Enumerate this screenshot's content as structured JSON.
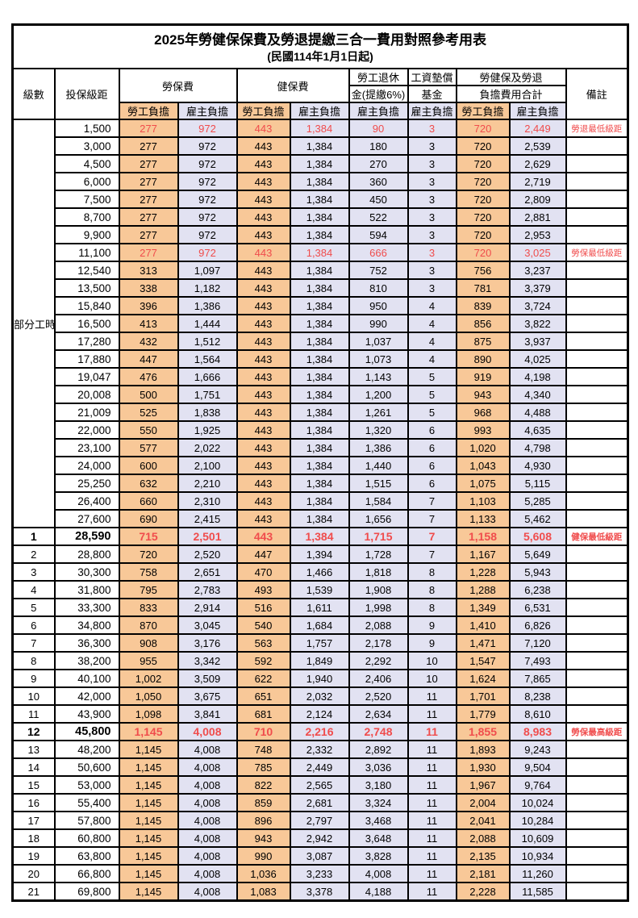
{
  "title": "2025年勞健保保費及勞退提繳三合一費用對照參考用表",
  "subtitle": "(民國114年1月1日起)",
  "colors": {
    "employee_column_bg": "#F8C898",
    "employer_column_bg": "#E2E2F2",
    "highlight_text": "#F04C4C",
    "grid_border": "#000000"
  },
  "header": {
    "level": "級數",
    "salary": "投保級距",
    "labor": "勞保費",
    "health": "健保費",
    "pension_line1": "勞工退休",
    "pension_line2": "金(提繳6%)",
    "fund_line1": "工資墊償",
    "fund_line2": "基金",
    "total_line1": "勞健保及勞退",
    "total_line2": "負擔費用合計",
    "note": "備註",
    "employee": "勞工負擔",
    "employer": "雇主負擔"
  },
  "table": {
    "part_time_label": "部分工時",
    "part_time_rowspan": 23,
    "rows": [
      {
        "salary": "1,500",
        "labor_emp": "277",
        "labor_er": "972",
        "health_emp": "443",
        "health_er": "1,384",
        "pension_er": "90",
        "fund_er": "3",
        "total_emp": "720",
        "total_er": "2,449",
        "note": "勞退最低級距",
        "highlight": true
      },
      {
        "salary": "3,000",
        "labor_emp": "277",
        "labor_er": "972",
        "health_emp": "443",
        "health_er": "1,384",
        "pension_er": "180",
        "fund_er": "3",
        "total_emp": "720",
        "total_er": "2,539"
      },
      {
        "salary": "4,500",
        "labor_emp": "277",
        "labor_er": "972",
        "health_emp": "443",
        "health_er": "1,384",
        "pension_er": "270",
        "fund_er": "3",
        "total_emp": "720",
        "total_er": "2,629"
      },
      {
        "salary": "6,000",
        "labor_emp": "277",
        "labor_er": "972",
        "health_emp": "443",
        "health_er": "1,384",
        "pension_er": "360",
        "fund_er": "3",
        "total_emp": "720",
        "total_er": "2,719"
      },
      {
        "salary": "7,500",
        "labor_emp": "277",
        "labor_er": "972",
        "health_emp": "443",
        "health_er": "1,384",
        "pension_er": "450",
        "fund_er": "3",
        "total_emp": "720",
        "total_er": "2,809"
      },
      {
        "salary": "8,700",
        "labor_emp": "277",
        "labor_er": "972",
        "health_emp": "443",
        "health_er": "1,384",
        "pension_er": "522",
        "fund_er": "3",
        "total_emp": "720",
        "total_er": "2,881"
      },
      {
        "salary": "9,900",
        "labor_emp": "277",
        "labor_er": "972",
        "health_emp": "443",
        "health_er": "1,384",
        "pension_er": "594",
        "fund_er": "3",
        "total_emp": "720",
        "total_er": "2,953"
      },
      {
        "salary": "11,100",
        "labor_emp": "277",
        "labor_er": "972",
        "health_emp": "443",
        "health_er": "1,384",
        "pension_er": "666",
        "fund_er": "3",
        "total_emp": "720",
        "total_er": "3,025",
        "note": "勞保最低級距",
        "highlight": true
      },
      {
        "salary": "12,540",
        "labor_emp": "313",
        "labor_er": "1,097",
        "health_emp": "443",
        "health_er": "1,384",
        "pension_er": "752",
        "fund_er": "3",
        "total_emp": "756",
        "total_er": "3,237"
      },
      {
        "salary": "13,500",
        "labor_emp": "338",
        "labor_er": "1,182",
        "health_emp": "443",
        "health_er": "1,384",
        "pension_er": "810",
        "fund_er": "3",
        "total_emp": "781",
        "total_er": "3,379"
      },
      {
        "salary": "15,840",
        "labor_emp": "396",
        "labor_er": "1,386",
        "health_emp": "443",
        "health_er": "1,384",
        "pension_er": "950",
        "fund_er": "4",
        "total_emp": "839",
        "total_er": "3,724"
      },
      {
        "salary": "16,500",
        "labor_emp": "413",
        "labor_er": "1,444",
        "health_emp": "443",
        "health_er": "1,384",
        "pension_er": "990",
        "fund_er": "4",
        "total_emp": "856",
        "total_er": "3,822"
      },
      {
        "salary": "17,280",
        "labor_emp": "432",
        "labor_er": "1,512",
        "health_emp": "443",
        "health_er": "1,384",
        "pension_er": "1,037",
        "fund_er": "4",
        "total_emp": "875",
        "total_er": "3,937"
      },
      {
        "salary": "17,880",
        "labor_emp": "447",
        "labor_er": "1,564",
        "health_emp": "443",
        "health_er": "1,384",
        "pension_er": "1,073",
        "fund_er": "4",
        "total_emp": "890",
        "total_er": "4,025"
      },
      {
        "salary": "19,047",
        "labor_emp": "476",
        "labor_er": "1,666",
        "health_emp": "443",
        "health_er": "1,384",
        "pension_er": "1,143",
        "fund_er": "5",
        "total_emp": "919",
        "total_er": "4,198"
      },
      {
        "salary": "20,008",
        "labor_emp": "500",
        "labor_er": "1,751",
        "health_emp": "443",
        "health_er": "1,384",
        "pension_er": "1,200",
        "fund_er": "5",
        "total_emp": "943",
        "total_er": "4,340"
      },
      {
        "salary": "21,009",
        "labor_emp": "525",
        "labor_er": "1,838",
        "health_emp": "443",
        "health_er": "1,384",
        "pension_er": "1,261",
        "fund_er": "5",
        "total_emp": "968",
        "total_er": "4,488"
      },
      {
        "salary": "22,000",
        "labor_emp": "550",
        "labor_er": "1,925",
        "health_emp": "443",
        "health_er": "1,384",
        "pension_er": "1,320",
        "fund_er": "6",
        "total_emp": "993",
        "total_er": "4,635"
      },
      {
        "salary": "23,100",
        "labor_emp": "577",
        "labor_er": "2,022",
        "health_emp": "443",
        "health_er": "1,384",
        "pension_er": "1,386",
        "fund_er": "6",
        "total_emp": "1,020",
        "total_er": "4,798"
      },
      {
        "salary": "24,000",
        "labor_emp": "600",
        "labor_er": "2,100",
        "health_emp": "443",
        "health_er": "1,384",
        "pension_er": "1,440",
        "fund_er": "6",
        "total_emp": "1,043",
        "total_er": "4,930"
      },
      {
        "salary": "25,250",
        "labor_emp": "632",
        "labor_er": "2,210",
        "health_emp": "443",
        "health_er": "1,384",
        "pension_er": "1,515",
        "fund_er": "6",
        "total_emp": "1,075",
        "total_er": "5,115"
      },
      {
        "salary": "26,400",
        "labor_emp": "660",
        "labor_er": "2,310",
        "health_emp": "443",
        "health_er": "1,384",
        "pension_er": "1,584",
        "fund_er": "7",
        "total_emp": "1,103",
        "total_er": "5,285"
      },
      {
        "salary": "27,600",
        "labor_emp": "690",
        "labor_er": "2,415",
        "health_emp": "443",
        "health_er": "1,384",
        "pension_er": "1,656",
        "fund_er": "7",
        "total_emp": "1,133",
        "total_er": "5,462"
      },
      {
        "level": "1",
        "salary": "28,590",
        "labor_emp": "715",
        "labor_er": "2,501",
        "health_emp": "443",
        "health_er": "1,384",
        "pension_er": "1,715",
        "fund_er": "7",
        "total_emp": "1,158",
        "total_er": "5,608",
        "note": "健保最低級距",
        "highlight": true,
        "emphasis": true
      },
      {
        "level": "2",
        "salary": "28,800",
        "labor_emp": "720",
        "labor_er": "2,520",
        "health_emp": "447",
        "health_er": "1,394",
        "pension_er": "1,728",
        "fund_er": "7",
        "total_emp": "1,167",
        "total_er": "5,649"
      },
      {
        "level": "3",
        "salary": "30,300",
        "labor_emp": "758",
        "labor_er": "2,651",
        "health_emp": "470",
        "health_er": "1,466",
        "pension_er": "1,818",
        "fund_er": "8",
        "total_emp": "1,228",
        "total_er": "5,943"
      },
      {
        "level": "4",
        "salary": "31,800",
        "labor_emp": "795",
        "labor_er": "2,783",
        "health_emp": "493",
        "health_er": "1,539",
        "pension_er": "1,908",
        "fund_er": "8",
        "total_emp": "1,288",
        "total_er": "6,238"
      },
      {
        "level": "5",
        "salary": "33,300",
        "labor_emp": "833",
        "labor_er": "2,914",
        "health_emp": "516",
        "health_er": "1,611",
        "pension_er": "1,998",
        "fund_er": "8",
        "total_emp": "1,349",
        "total_er": "6,531"
      },
      {
        "level": "6",
        "salary": "34,800",
        "labor_emp": "870",
        "labor_er": "3,045",
        "health_emp": "540",
        "health_er": "1,684",
        "pension_er": "2,088",
        "fund_er": "9",
        "total_emp": "1,410",
        "total_er": "6,826"
      },
      {
        "level": "7",
        "salary": "36,300",
        "labor_emp": "908",
        "labor_er": "3,176",
        "health_emp": "563",
        "health_er": "1,757",
        "pension_er": "2,178",
        "fund_er": "9",
        "total_emp": "1,471",
        "total_er": "7,120"
      },
      {
        "level": "8",
        "salary": "38,200",
        "labor_emp": "955",
        "labor_er": "3,342",
        "health_emp": "592",
        "health_er": "1,849",
        "pension_er": "2,292",
        "fund_er": "10",
        "total_emp": "1,547",
        "total_er": "7,493"
      },
      {
        "level": "9",
        "salary": "40,100",
        "labor_emp": "1,002",
        "labor_er": "3,509",
        "health_emp": "622",
        "health_er": "1,940",
        "pension_er": "2,406",
        "fund_er": "10",
        "total_emp": "1,624",
        "total_er": "7,865"
      },
      {
        "level": "10",
        "salary": "42,000",
        "labor_emp": "1,050",
        "labor_er": "3,675",
        "health_emp": "651",
        "health_er": "2,032",
        "pension_er": "2,520",
        "fund_er": "11",
        "total_emp": "1,701",
        "total_er": "8,238"
      },
      {
        "level": "11",
        "salary": "43,900",
        "labor_emp": "1,098",
        "labor_er": "3,841",
        "health_emp": "681",
        "health_er": "2,124",
        "pension_er": "2,634",
        "fund_er": "11",
        "total_emp": "1,779",
        "total_er": "8,610"
      },
      {
        "level": "12",
        "salary": "45,800",
        "labor_emp": "1,145",
        "labor_er": "4,008",
        "health_emp": "710",
        "health_er": "2,216",
        "pension_er": "2,748",
        "fund_er": "11",
        "total_emp": "1,855",
        "total_er": "8,983",
        "note": "勞保最高級距",
        "highlight": true,
        "emphasis": true
      },
      {
        "level": "13",
        "salary": "48,200",
        "labor_emp": "1,145",
        "labor_er": "4,008",
        "health_emp": "748",
        "health_er": "2,332",
        "pension_er": "2,892",
        "fund_er": "11",
        "total_emp": "1,893",
        "total_er": "9,243"
      },
      {
        "level": "14",
        "salary": "50,600",
        "labor_emp": "1,145",
        "labor_er": "4,008",
        "health_emp": "785",
        "health_er": "2,449",
        "pension_er": "3,036",
        "fund_er": "11",
        "total_emp": "1,930",
        "total_er": "9,504"
      },
      {
        "level": "15",
        "salary": "53,000",
        "labor_emp": "1,145",
        "labor_er": "4,008",
        "health_emp": "822",
        "health_er": "2,565",
        "pension_er": "3,180",
        "fund_er": "11",
        "total_emp": "1,967",
        "total_er": "9,764"
      },
      {
        "level": "16",
        "salary": "55,400",
        "labor_emp": "1,145",
        "labor_er": "4,008",
        "health_emp": "859",
        "health_er": "2,681",
        "pension_er": "3,324",
        "fund_er": "11",
        "total_emp": "2,004",
        "total_er": "10,024"
      },
      {
        "level": "17",
        "salary": "57,800",
        "labor_emp": "1,145",
        "labor_er": "4,008",
        "health_emp": "896",
        "health_er": "2,797",
        "pension_er": "3,468",
        "fund_er": "11",
        "total_emp": "2,041",
        "total_er": "10,284"
      },
      {
        "level": "18",
        "salary": "60,800",
        "labor_emp": "1,145",
        "labor_er": "4,008",
        "health_emp": "943",
        "health_er": "2,942",
        "pension_er": "3,648",
        "fund_er": "11",
        "total_emp": "2,088",
        "total_er": "10,609"
      },
      {
        "level": "19",
        "salary": "63,800",
        "labor_emp": "1,145",
        "labor_er": "4,008",
        "health_emp": "990",
        "health_er": "3,087",
        "pension_er": "3,828",
        "fund_er": "11",
        "total_emp": "2,135",
        "total_er": "10,934"
      },
      {
        "level": "20",
        "salary": "66,800",
        "labor_emp": "1,145",
        "labor_er": "4,008",
        "health_emp": "1,036",
        "health_er": "3,233",
        "pension_er": "4,008",
        "fund_er": "11",
        "total_emp": "2,181",
        "total_er": "11,260"
      },
      {
        "level": "21",
        "salary": "69,800",
        "labor_emp": "1,145",
        "labor_er": "4,008",
        "health_emp": "1,083",
        "health_er": "3,378",
        "pension_er": "4,188",
        "fund_er": "11",
        "total_emp": "2,228",
        "total_er": "11,585"
      }
    ]
  }
}
